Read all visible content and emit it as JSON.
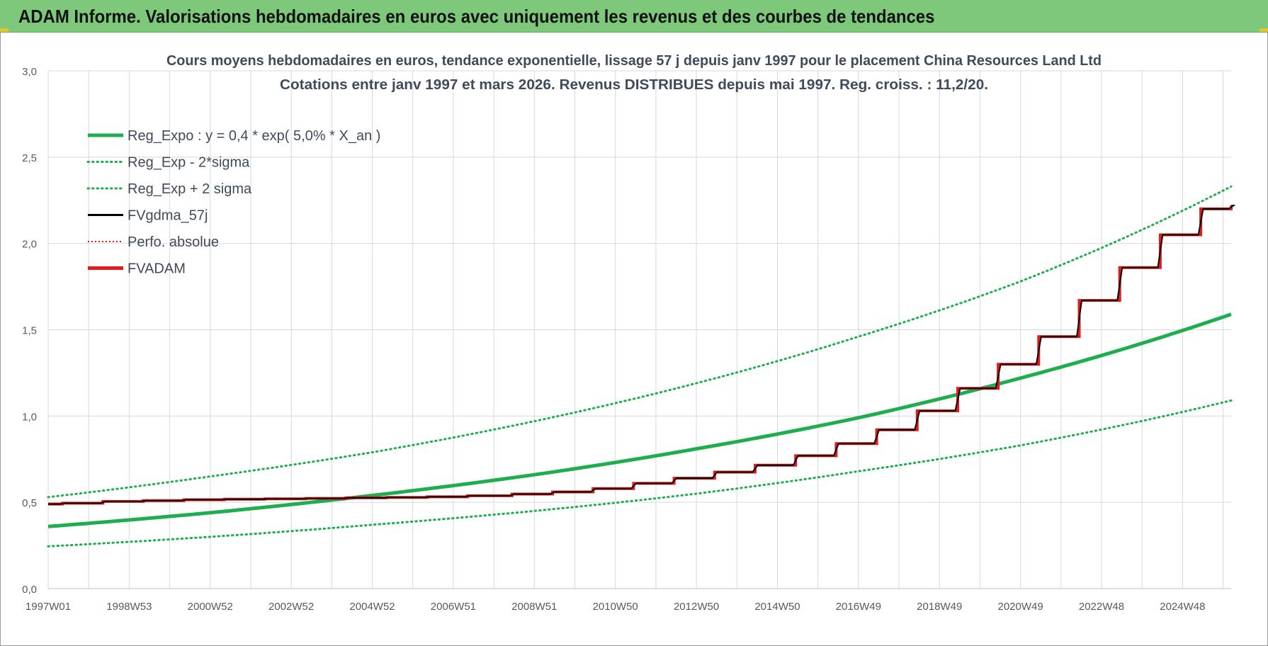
{
  "banner": {
    "title": "ADAM Informe. Valorisations hebdomadaires en euros avec uniquement les revenus et des courbes de tendances"
  },
  "colors": {
    "banner_bg": "#7dc87b",
    "trend": "#1fae4f",
    "fv_adam": "#e21b1b",
    "fv_smooth": "#000000",
    "grid": "#d9d9d9",
    "axis_text": "#595959",
    "title_text": "#404a5a"
  },
  "chart_data": {
    "type": "line",
    "title_line1": "Cours moyens hebdomadaires en euros, tendance exponentielle, lissage 57 j depuis janv 1997 pour le placement China Resources Land Ltd",
    "title_line2": "Cotations entre janv 1997 et mars 2026. Revenus DISTRIBUES depuis mai 1997. Reg. croiss. : 11,2/20.",
    "x_start_year": 1997.0,
    "x_end_year": 2026.2,
    "x_ticks": [
      {
        "label": "1997W01",
        "year": 1997.0
      },
      {
        "label": "1998W53",
        "year": 1999.0
      },
      {
        "label": "2000W52",
        "year": 2001.0
      },
      {
        "label": "2002W52",
        "year": 2003.0
      },
      {
        "label": "2004W52",
        "year": 2005.0
      },
      {
        "label": "2006W51",
        "year": 2007.0
      },
      {
        "label": "2008W51",
        "year": 2009.0
      },
      {
        "label": "2010W50",
        "year": 2011.0
      },
      {
        "label": "2012W50",
        "year": 2013.0
      },
      {
        "label": "2014W50",
        "year": 2015.0
      },
      {
        "label": "2016W49",
        "year": 2017.0
      },
      {
        "label": "2018W49",
        "year": 2019.0
      },
      {
        "label": "2020W49",
        "year": 2021.0
      },
      {
        "label": "2022W48",
        "year": 2023.0
      },
      {
        "label": "2024W48",
        "year": 2025.0
      }
    ],
    "y_ticks": [
      "0,0",
      "0,5",
      "1,0",
      "1,5",
      "2,0",
      "2,5",
      "3,0"
    ],
    "ylim": [
      0,
      3
    ],
    "grid": true,
    "legend_position": "top-left",
    "legend": [
      {
        "name": "Reg_Expo : y = 0,4 * exp( 5,0% *  X_an )",
        "style": "solid-thick",
        "color": "#1fae4f"
      },
      {
        "name": "Reg_Exp - 2*sigma",
        "style": "dotted",
        "color": "#1fae4f"
      },
      {
        "name": "Reg_Exp + 2 sigma",
        "style": "dotted",
        "color": "#1fae4f"
      },
      {
        "name": "FVgdma_57j",
        "style": "solid",
        "color": "#000000"
      },
      {
        "name": "Perfo. absolue",
        "style": "dotted-thin",
        "color": "#e21b1b"
      },
      {
        "name": "FVADAM",
        "style": "solid-thick",
        "color": "#e21b1b"
      }
    ],
    "series": [
      {
        "name": "Reg_Expo : y = 0,4 * exp( 5,0% *  X_an )",
        "x": [
          1997.0,
          2001.0,
          2005.0,
          2009.0,
          2013.0,
          2017.0,
          2021.0,
          2026.2
        ],
        "values": [
          0.36,
          0.44,
          0.54,
          0.66,
          0.81,
          0.99,
          1.22,
          1.59
        ]
      },
      {
        "name": "Reg_Exp - 2*sigma",
        "x": [
          1997.0,
          2001.0,
          2005.0,
          2009.0,
          2013.0,
          2017.0,
          2021.0,
          2026.2
        ],
        "values": [
          0.245,
          0.3,
          0.37,
          0.45,
          0.55,
          0.68,
          0.83,
          1.09
        ]
      },
      {
        "name": "Reg_Exp + 2 sigma",
        "x": [
          1997.0,
          2001.0,
          2005.0,
          2009.0,
          2013.0,
          2017.0,
          2021.0,
          2026.2
        ],
        "values": [
          0.53,
          0.65,
          0.79,
          0.97,
          1.19,
          1.46,
          1.78,
          2.33
        ]
      },
      {
        "name": "FVADAM",
        "x": [
          1997.0,
          1997.35,
          1998.35,
          1999.35,
          2000.35,
          2001.35,
          2002.35,
          2003.35,
          2004.35,
          2005.35,
          2006.35,
          2007.35,
          2008.45,
          2009.45,
          2010.45,
          2011.45,
          2012.45,
          2013.45,
          2014.45,
          2015.45,
          2016.45,
          2017.45,
          2018.45,
          2019.45,
          2020.45,
          2021.45,
          2022.45,
          2023.45,
          2024.45,
          2025.45,
          2026.2
        ],
        "values": [
          0.49,
          0.495,
          0.505,
          0.51,
          0.515,
          0.518,
          0.52,
          0.523,
          0.526,
          0.528,
          0.532,
          0.538,
          0.548,
          0.56,
          0.58,
          0.61,
          0.64,
          0.675,
          0.715,
          0.77,
          0.84,
          0.92,
          1.03,
          1.16,
          1.3,
          1.46,
          1.67,
          1.86,
          2.05,
          2.2,
          2.22
        ]
      }
    ]
  }
}
